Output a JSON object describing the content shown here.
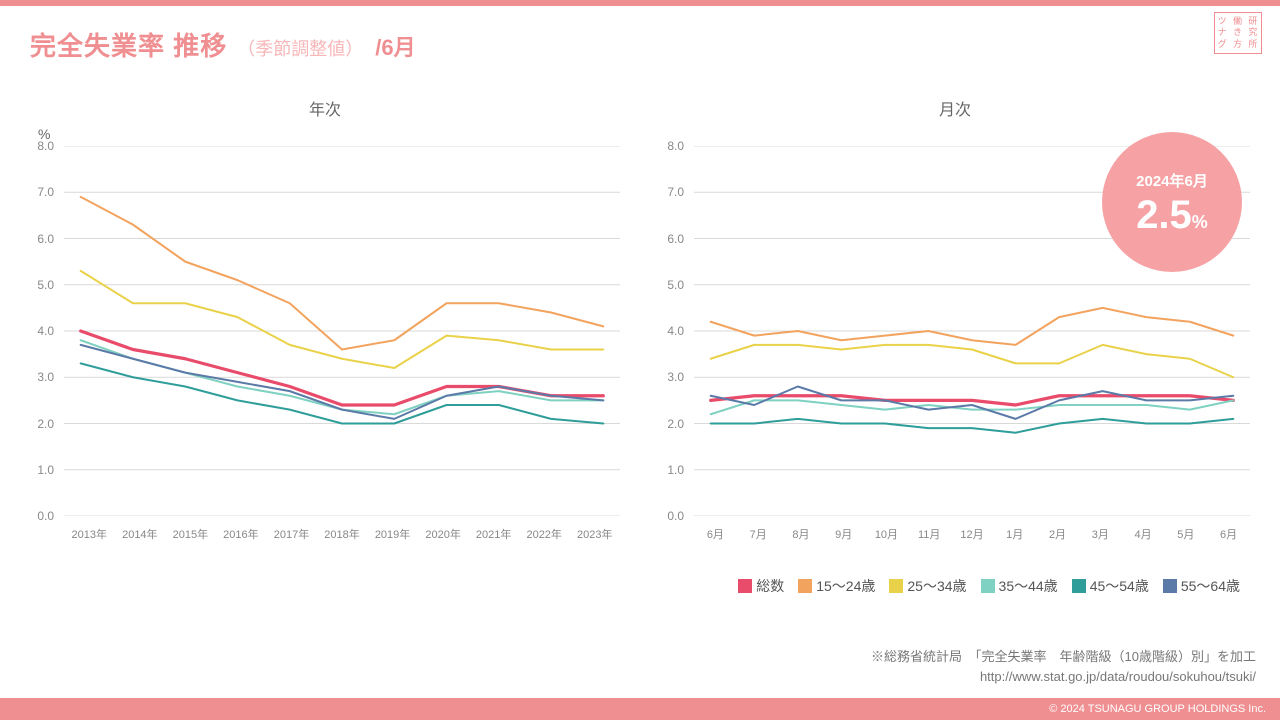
{
  "palette": {
    "accent": "#f08f92",
    "title": "#f08f92",
    "title_sub": "#f7b7b9",
    "text_gray": "#707070",
    "grid": "#d9d9d9",
    "badge_bg": "#f6a2a5",
    "footer": "#f08f92"
  },
  "logo_text": "ツナグ\n働き方\n研究所",
  "title": {
    "main": "完全失業率 推移",
    "sub": "（季節調整値）",
    "period": "/6月"
  },
  "y_axis": {
    "unit": "%",
    "min": 0.0,
    "max": 8.0,
    "step": 1.0,
    "tick_format": "fixed1"
  },
  "series_meta": [
    {
      "key": "total",
      "label": "総数",
      "color": "#e94b6b",
      "width": 3.2
    },
    {
      "key": "a15_24",
      "label": "15～24歳",
      "color": "#f2a35e",
      "width": 2
    },
    {
      "key": "a25_34",
      "label": "25～34歳",
      "color": "#e9d24a",
      "width": 2
    },
    {
      "key": "a35_44",
      "label": "35～44歳",
      "color": "#7fd1c1",
      "width": 2
    },
    {
      "key": "a45_54",
      "label": "45～54歳",
      "color": "#2f9e9a",
      "width": 2
    },
    {
      "key": "a55_64",
      "label": "55～64歳",
      "color": "#5b7aa8",
      "width": 2
    }
  ],
  "yearly": {
    "title": "年次",
    "categories": [
      "2013年",
      "2014年",
      "2015年",
      "2016年",
      "2017年",
      "2018年",
      "2019年",
      "2020年",
      "2021年",
      "2022年",
      "2023年"
    ],
    "series": {
      "total": [
        4.0,
        3.6,
        3.4,
        3.1,
        2.8,
        2.4,
        2.4,
        2.8,
        2.8,
        2.6,
        2.6
      ],
      "a15_24": [
        6.9,
        6.3,
        5.5,
        5.1,
        4.6,
        3.6,
        3.8,
        4.6,
        4.6,
        4.4,
        4.1
      ],
      "a25_34": [
        5.3,
        4.6,
        4.6,
        4.3,
        3.7,
        3.4,
        3.2,
        3.9,
        3.8,
        3.6,
        3.6
      ],
      "a35_44": [
        3.8,
        3.4,
        3.1,
        2.8,
        2.6,
        2.3,
        2.2,
        2.6,
        2.7,
        2.5,
        2.5
      ],
      "a45_54": [
        3.3,
        3.0,
        2.8,
        2.5,
        2.3,
        2.0,
        2.0,
        2.4,
        2.4,
        2.1,
        2.0
      ],
      "a55_64": [
        3.7,
        3.4,
        3.1,
        2.9,
        2.7,
        2.3,
        2.1,
        2.6,
        2.8,
        2.6,
        2.5
      ]
    }
  },
  "monthly": {
    "title": "月次",
    "categories": [
      "6月",
      "7月",
      "8月",
      "9月",
      "10月",
      "11月",
      "12月",
      "1月",
      "2月",
      "3月",
      "4月",
      "5月",
      "6月"
    ],
    "series": {
      "total": [
        2.5,
        2.6,
        2.6,
        2.6,
        2.5,
        2.5,
        2.5,
        2.4,
        2.6,
        2.6,
        2.6,
        2.6,
        2.5
      ],
      "a15_24": [
        4.2,
        3.9,
        4.0,
        3.8,
        3.9,
        4.0,
        3.8,
        3.7,
        4.3,
        4.5,
        4.3,
        4.2,
        3.9
      ],
      "a25_34": [
        3.4,
        3.7,
        3.7,
        3.6,
        3.7,
        3.7,
        3.6,
        3.3,
        3.3,
        3.7,
        3.5,
        3.4,
        3.0
      ],
      "a35_44": [
        2.2,
        2.5,
        2.5,
        2.4,
        2.3,
        2.4,
        2.3,
        2.3,
        2.4,
        2.4,
        2.4,
        2.3,
        2.5
      ],
      "a45_54": [
        2.0,
        2.0,
        2.1,
        2.0,
        2.0,
        1.9,
        1.9,
        1.8,
        2.0,
        2.1,
        2.0,
        2.0,
        2.1
      ],
      "a55_64": [
        2.6,
        2.4,
        2.8,
        2.5,
        2.5,
        2.3,
        2.4,
        2.1,
        2.5,
        2.7,
        2.5,
        2.5,
        2.6
      ]
    }
  },
  "badge": {
    "title": "2024年6月",
    "value": "2.5",
    "unit": "%"
  },
  "source": {
    "line1": "※総務省統計局　「完全失業率　年齢階級（10歳階級）別」を加工",
    "line2": "http://www.stat.go.jp/data/roudou/sokuhou/tsuki/"
  },
  "footer": "© 2024 TSUNAGU GROUP HOLDINGS Inc."
}
